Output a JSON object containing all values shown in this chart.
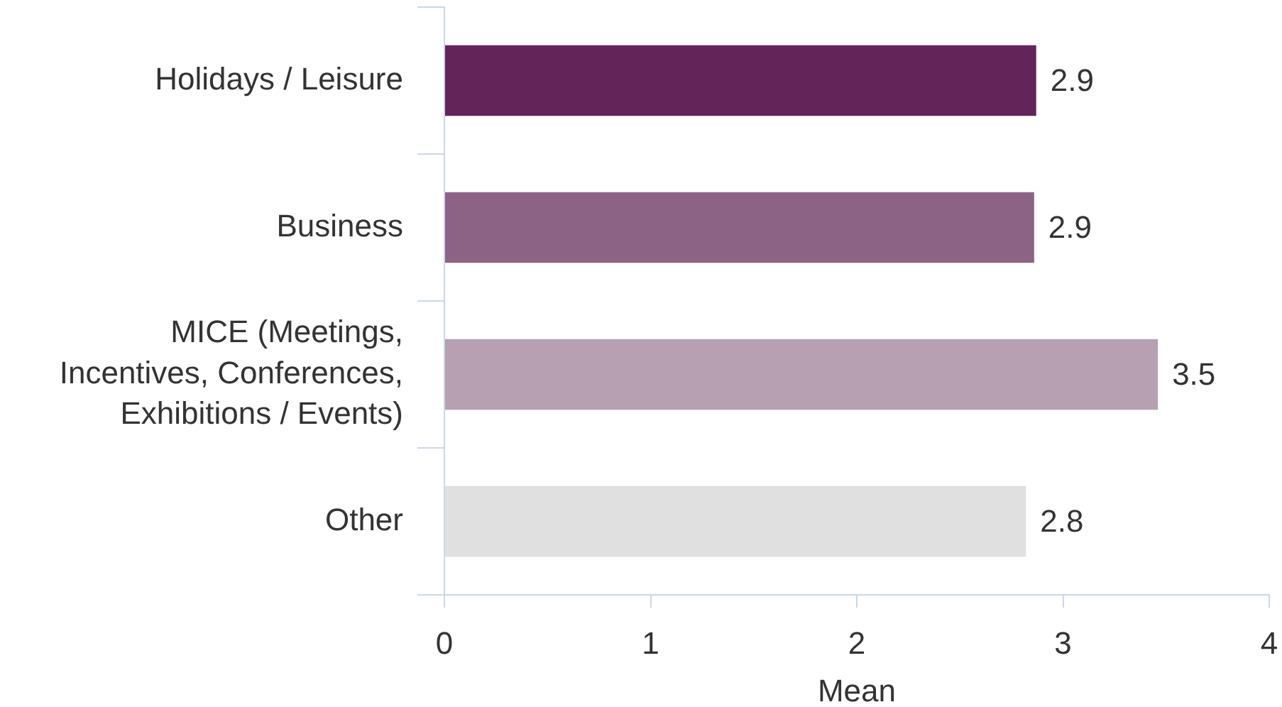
{
  "chart_data": {
    "type": "bar",
    "orientation": "horizontal",
    "xlabel": "Mean",
    "categories": [
      "Holidays / Leisure",
      "Business",
      "MICE (Meetings, Incentives, Conferences, Exhibitions / Events)",
      "Other"
    ],
    "values": [
      2.87,
      2.86,
      3.46,
      2.82
    ],
    "colors": [
      "#63245a",
      "#8c6384",
      "#b6a0b2",
      "#e0e0e0"
    ],
    "value_labels": [
      "2.9",
      "2.9",
      "3.5",
      "2.8"
    ],
    "xlim": [
      0,
      4
    ],
    "xticks": [
      0,
      1,
      2,
      3,
      4
    ]
  }
}
